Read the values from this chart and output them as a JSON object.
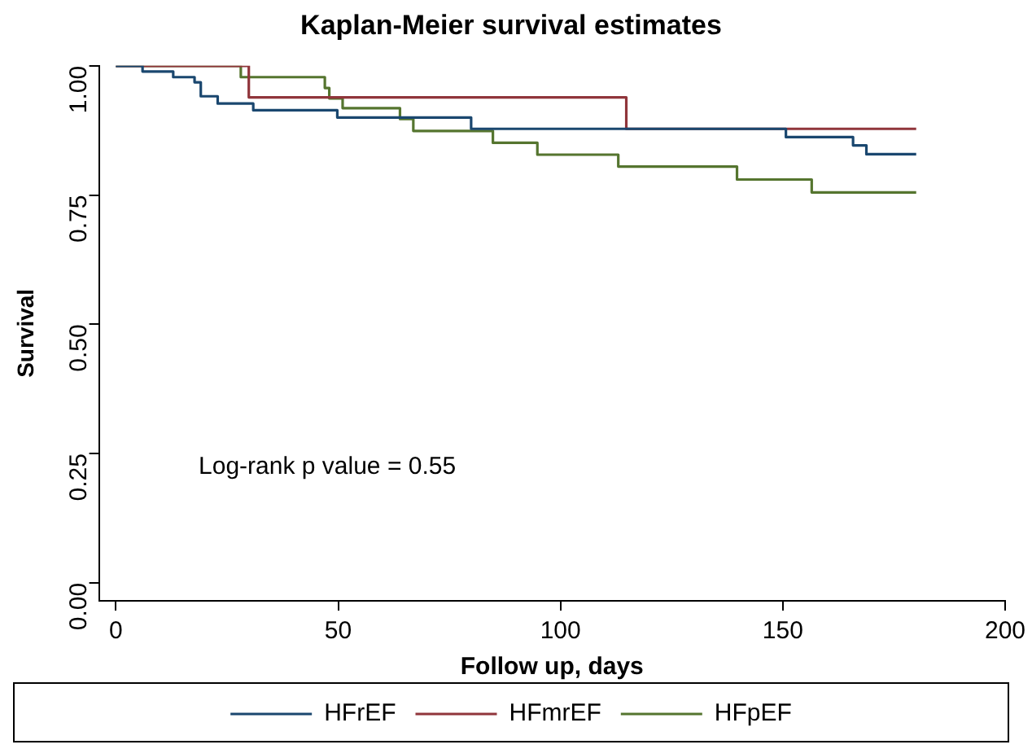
{
  "chart_data": {
    "type": "step",
    "title": "Kaplan-Meier survival estimates",
    "xlabel": "Follow up, days",
    "ylabel": "Survival",
    "xlim": [
      -3.8,
      200
    ],
    "xticks": [
      0,
      50,
      100,
      150,
      200
    ],
    "ylim": [
      -0.035,
      1
    ],
    "yticks": [
      {
        "value": 0,
        "label": "0.00"
      },
      {
        "value": 0.25,
        "label": "0.25"
      },
      {
        "value": 0.5,
        "label": "0.50"
      },
      {
        "value": 0.75,
        "label": "0.75"
      },
      {
        "value": 1,
        "label": "1.00"
      }
    ],
    "series": [
      {
        "name": "HFrEF",
        "color": "#1a476f",
        "x": [
          0,
          6,
          12.9,
          17.7,
          19.1,
          22.9,
          30.9,
          49.8,
          79.9,
          150.7,
          165.8,
          168.8,
          180
        ],
        "values": [
          1,
          1,
          0.989,
          0.978,
          0.968,
          0.941,
          0.927,
          0.914,
          0.9,
          0.878,
          0.862,
          0.846,
          0.829
        ]
      },
      {
        "name": "HFmrEF",
        "color": "#90353b",
        "x": [
          0,
          29.9,
          114.8,
          180
        ],
        "values": [
          1,
          1,
          0.939,
          0.878
        ]
      },
      {
        "name": "HFpEF",
        "color": "#55752f",
        "x": [
          0,
          28.1,
          47,
          48,
          51,
          63.9,
          66.9,
          84.8,
          94.8,
          113,
          139.7,
          156.5,
          180
        ],
        "values": [
          1,
          1,
          0.978,
          0.957,
          0.937,
          0.918,
          0.897,
          0.874,
          0.851,
          0.828,
          0.805,
          0.78,
          0.755
        ]
      }
    ],
    "annotations": [
      "Log-rank p value = 0.55"
    ],
    "legend": "bottom",
    "grid": false
  }
}
